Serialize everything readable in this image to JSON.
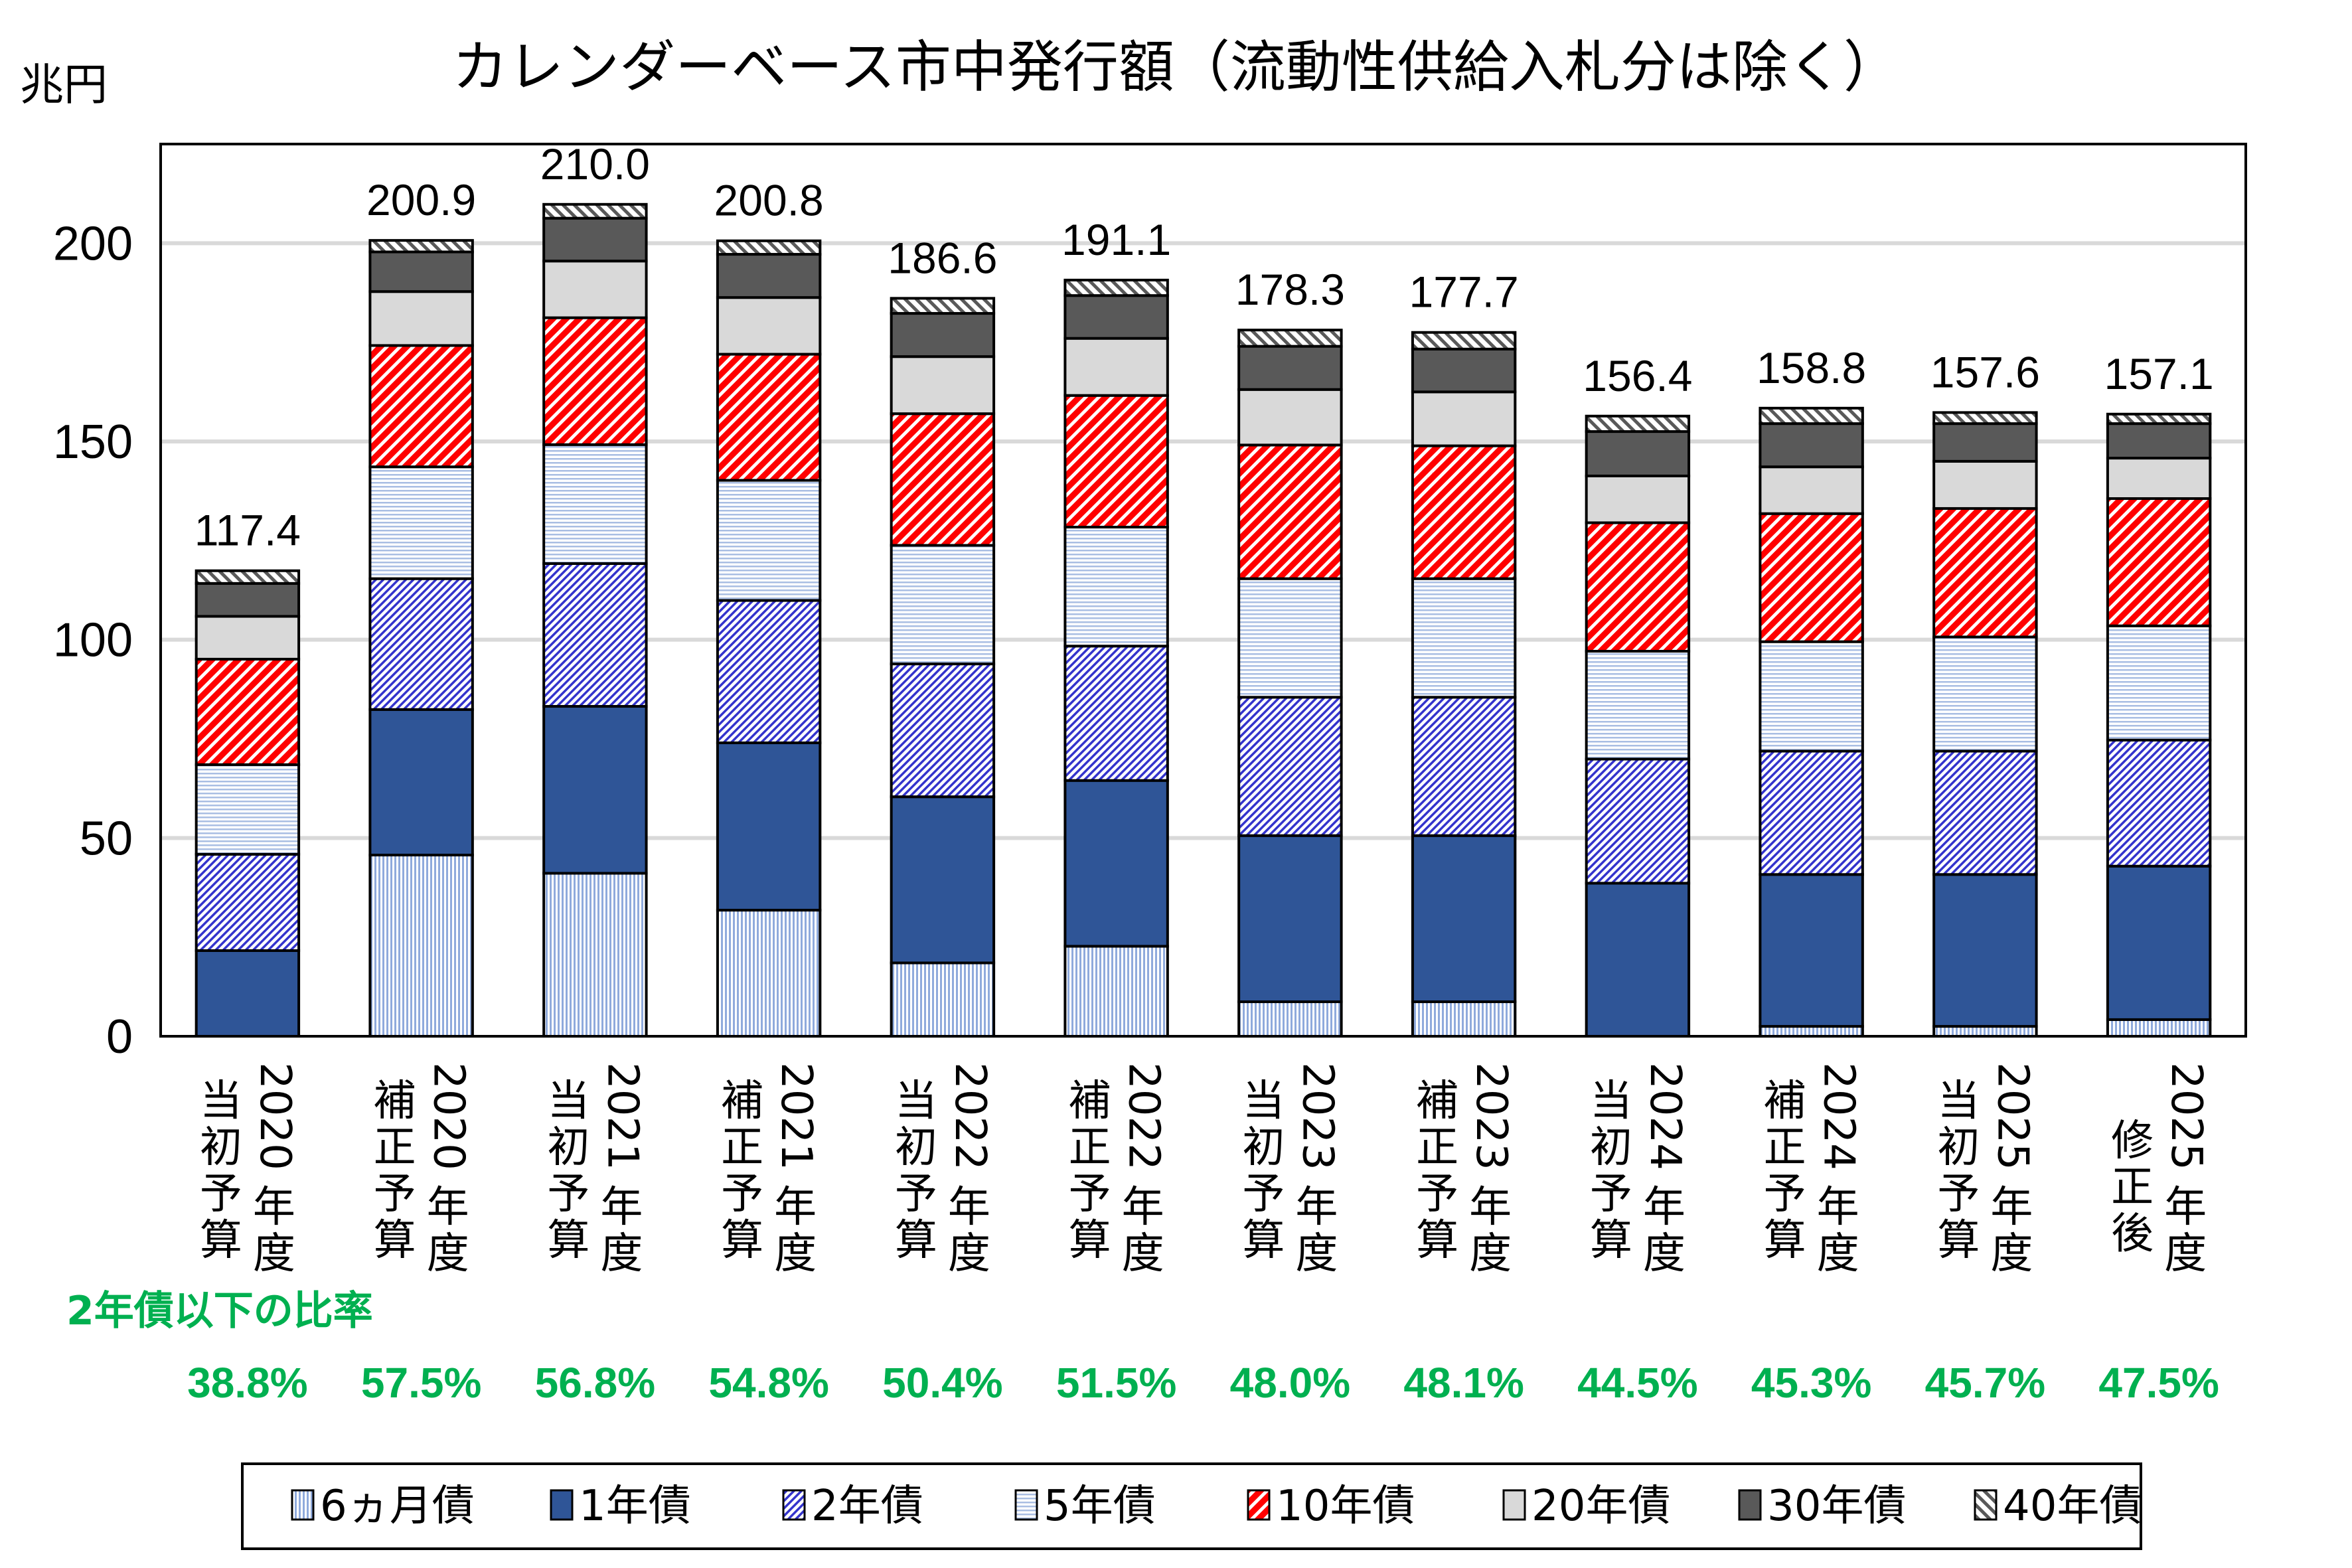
{
  "chart_data": {
    "type": "bar",
    "stacked": true,
    "title": "カレンダーベース市中発行額（流動性供給入札分は除く）",
    "ylabel": "兆円",
    "xlabel": "",
    "ylim": [
      0,
      225
    ],
    "yticks": [
      0,
      50,
      100,
      150,
      200
    ],
    "grid": true,
    "legend_position": "bottom",
    "categories": [
      {
        "year": "2020年度",
        "budget": "当初予算"
      },
      {
        "year": "2020年度",
        "budget": "補正予算"
      },
      {
        "year": "2021年度",
        "budget": "当初予算"
      },
      {
        "year": "2021年度",
        "budget": "補正予算"
      },
      {
        "year": "2022年度",
        "budget": "当初予算"
      },
      {
        "year": "2022年度",
        "budget": "補正予算"
      },
      {
        "year": "2023年度",
        "budget": "当初予算"
      },
      {
        "year": "2023年度",
        "budget": "補正予算"
      },
      {
        "year": "2024年度",
        "budget": "当初予算"
      },
      {
        "year": "2024年度",
        "budget": "補正予算"
      },
      {
        "year": "2025年度",
        "budget": "当初予算"
      },
      {
        "year": "2025年度",
        "budget": "修正後"
      }
    ],
    "totals": [
      "117.4",
      "200.9",
      "210.0",
      "200.8",
      "186.6",
      "191.1",
      "178.3",
      "177.7",
      "156.4",
      "158.8",
      "157.6",
      "157.1"
    ],
    "series": [
      {
        "name": "6ヵ月債",
        "pattern": "vertical-stripes",
        "color": "#8FAADC",
        "values": [
          0,
          45.7,
          41.1,
          31.8,
          18.5,
          22.7,
          8.7,
          8.7,
          0,
          2.5,
          2.5,
          4.2
        ]
      },
      {
        "name": "1年債",
        "pattern": "solid",
        "color": "#2F5597",
        "values": [
          21.6,
          36.7,
          42.1,
          42.2,
          41.9,
          41.8,
          41.9,
          41.9,
          38.6,
          38.3,
          38.3,
          38.7
        ]
      },
      {
        "name": "2年債",
        "pattern": "diagonal-back",
        "color": "#3333CC",
        "values": [
          24.3,
          33.0,
          36.0,
          35.9,
          33.5,
          33.9,
          34.9,
          34.9,
          31.3,
          31.1,
          31.1,
          31.8
        ]
      },
      {
        "name": "5年債",
        "pattern": "horizontal-stripes",
        "color": "#8FAADC",
        "values": [
          22.6,
          28.2,
          30.0,
          30.3,
          29.9,
          30.0,
          29.9,
          29.9,
          27.2,
          27.6,
          28.8,
          28.8
        ]
      },
      {
        "name": "10年債",
        "pattern": "wide-diagonal-back",
        "color": "#FF0000",
        "values": [
          26.6,
          30.6,
          32.0,
          31.8,
          33.2,
          33.2,
          33.7,
          33.5,
          32.4,
          32.3,
          32.4,
          32.1
        ]
      },
      {
        "name": "20年債",
        "pattern": "solid",
        "color": "#D9D9D9",
        "values": [
          10.8,
          13.6,
          14.3,
          14.3,
          14.4,
          14.4,
          14.0,
          13.6,
          11.8,
          11.8,
          11.9,
          10.2
        ]
      },
      {
        "name": "30年債",
        "pattern": "solid",
        "color": "#595959",
        "values": [
          8.3,
          10.0,
          10.8,
          10.9,
          10.9,
          10.8,
          10.9,
          10.8,
          11.2,
          10.9,
          9.5,
          8.7
        ]
      },
      {
        "name": "40年債",
        "pattern": "diagonal-forward",
        "color": "#595959",
        "values": [
          3.2,
          2.9,
          3.5,
          3.4,
          3.8,
          3.9,
          4.1,
          4.2,
          3.9,
          3.9,
          2.8,
          2.4
        ]
      }
    ],
    "annotation": {
      "title": "2年債以下の比率",
      "color": "#00B050",
      "values": [
        "38.8%",
        "57.5%",
        "56.8%",
        "54.8%",
        "50.4%",
        "51.5%",
        "48.0%",
        "48.1%",
        "44.5%",
        "45.3%",
        "45.7%",
        "47.5%"
      ]
    }
  }
}
